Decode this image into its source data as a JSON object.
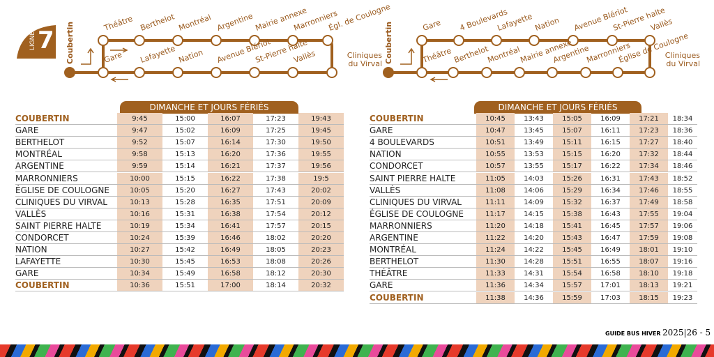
{
  "left": {
    "badge": {
      "label": "LIGNE",
      "number": "7"
    },
    "diagram": {
      "origin": "Coubertin",
      "top": [
        "Théâtre",
        "Berthelot",
        "Montréal",
        "Argentine",
        "Mairie annexe",
        "Marronniers",
        "Égl. de Coulogne"
      ],
      "bottom": [
        "Gare",
        "Lafayette",
        "Nation",
        "Avenue Blériot",
        "St-Pierre halte",
        "Vallès",
        "Cliniques du Virval"
      ]
    },
    "table": {
      "header": "DIMANCHE ET JOURS FÉRIÉS",
      "rows": [
        [
          "COUBERTIN",
          "9:45",
          "15:00",
          "16:07",
          "17:23",
          "19:43"
        ],
        [
          "GARE",
          "9:47",
          "15:02",
          "16:09",
          "17:25",
          "19:45"
        ],
        [
          "BERTHELOT",
          "9:52",
          "15:07",
          "16:14",
          "17:30",
          "19:50"
        ],
        [
          "MONTRÉAL",
          "9:58",
          "15:13",
          "16:20",
          "17:36",
          "19:55"
        ],
        [
          "ARGENTINE",
          "9:59",
          "15:14",
          "16:21",
          "17:37",
          "19:56"
        ],
        [
          "MARRONNIERS",
          "10:00",
          "15:15",
          "16:22",
          "17:38",
          "19:5"
        ],
        [
          "ÉGLISE DE COULOGNE",
          "10:05",
          "15:20",
          "16:27",
          "17:43",
          "20:02"
        ],
        [
          "CLINIQUES DU VIRVAL",
          "10:13",
          "15:28",
          "16:35",
          "17:51",
          "20:09"
        ],
        [
          "VALLÈS",
          "10:16",
          "15:31",
          "16:38",
          "17:54",
          "20:12"
        ],
        [
          "SAINT PIERRE HALTE",
          "10:19",
          "15:34",
          "16:41",
          "17:57",
          "20:15"
        ],
        [
          "CONDORCET",
          "10:24",
          "15:39",
          "16:46",
          "18:02",
          "20:20"
        ],
        [
          "NATION",
          "10:27",
          "15:42",
          "16:49",
          "18:05",
          "20:23"
        ],
        [
          "LAFAYETTE",
          "10:30",
          "15:45",
          "16:53",
          "18:08",
          "20:26"
        ],
        [
          "GARE",
          "10:34",
          "15:49",
          "16:58",
          "18:12",
          "20:30"
        ],
        [
          "COUBERTIN",
          "10:36",
          "15:51",
          "17:00",
          "18:14",
          "20:32"
        ]
      ]
    }
  },
  "right": {
    "diagram": {
      "origin": "Coubertin",
      "top": [
        "Gare",
        "4 Boulevards",
        "Lafayette",
        "Nation",
        "Avenue Blériot",
        "St-Pierre halte",
        "Vallès"
      ],
      "bottom": [
        "Théâtre",
        "Berthelot",
        "Montréal",
        "Mairie annexe",
        "Argentine",
        "Marronniers",
        "Église de Coulogne",
        "Cliniques du Virval"
      ]
    },
    "table": {
      "header": "DIMANCHE ET JOURS FÉRIÉS",
      "rows": [
        [
          "COUBERTIN",
          "10:45",
          "13:43",
          "15:05",
          "16:09",
          "17:21",
          "18:34"
        ],
        [
          "GARE",
          "10:47",
          "13:45",
          "15:07",
          "16:11",
          "17:23",
          "18:36"
        ],
        [
          "4 BOULEVARDS",
          "10:51",
          "13:49",
          "15:11",
          "16:15",
          "17:27",
          "18:40"
        ],
        [
          "NATION",
          "10:55",
          "13:53",
          "15:15",
          "16:20",
          "17:32",
          "18:44"
        ],
        [
          "CONDORCET",
          "10:57",
          "13:55",
          "15:17",
          "16:22",
          "17:34",
          "18:46"
        ],
        [
          "SAINT PIERRE HALTE",
          "11:05",
          "14:03",
          "15:26",
          "16:31",
          "17:43",
          "18:52"
        ],
        [
          "VALLÈS",
          "11:08",
          "14:06",
          "15:29",
          "16:34",
          "17:46",
          "18:55"
        ],
        [
          "CLINIQUES DU VIRVAL",
          "11:11",
          "14:09",
          "15:32",
          "16:37",
          "17:49",
          "18:58"
        ],
        [
          "ÉGLISE DE COULOGNE",
          "11:17",
          "14:15",
          "15:38",
          "16:43",
          "17:55",
          "19:04"
        ],
        [
          "MARRONNIERS",
          "11:20",
          "14:18",
          "15:41",
          "16:45",
          "17:57",
          "19:06"
        ],
        [
          "ARGENTINE",
          "11:22",
          "14:20",
          "15:43",
          "16:47",
          "17:59",
          "19:08"
        ],
        [
          "MONTRÉAL",
          "11:24",
          "14:22",
          "15:45",
          "16:49",
          "18:01",
          "19:10"
        ],
        [
          "BERTHELOT",
          "11:30",
          "14:28",
          "15:51",
          "16:55",
          "18:07",
          "19:16"
        ],
        [
          "THÉÂTRE",
          "11:33",
          "14:31",
          "15:54",
          "16:58",
          "18:10",
          "19:18"
        ],
        [
          "GARE",
          "11:36",
          "14:34",
          "15:57",
          "17:01",
          "18:13",
          "19:21"
        ],
        [
          "COUBERTIN",
          "11:38",
          "14:36",
          "15:59",
          "17:03",
          "18:15",
          "19:23"
        ]
      ]
    }
  },
  "footer": {
    "title": "GUIDE BUS HIVER",
    "page": "2025|26 - 5"
  }
}
